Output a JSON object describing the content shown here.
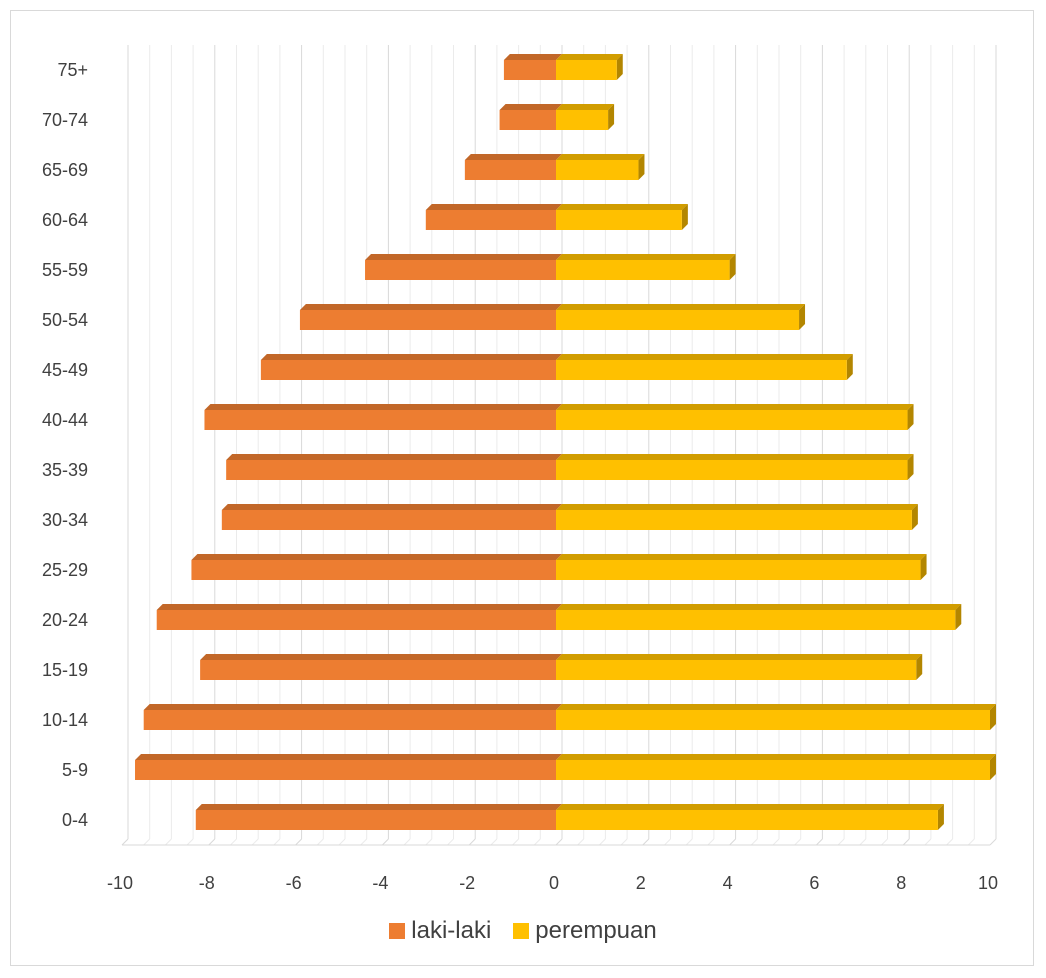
{
  "chart_data": {
    "type": "bar",
    "orientation": "horizontal",
    "title": "",
    "xlabel": "",
    "ylabel": "",
    "categories": [
      "0-4",
      "5-9",
      "10-14",
      "15-19",
      "20-24",
      "25-29",
      "30-34",
      "35-39",
      "40-44",
      "45-49",
      "50-54",
      "55-59",
      "60-64",
      "65-69",
      "70-74",
      "75+"
    ],
    "series": [
      {
        "name": "laki-laki",
        "color": "#ED7D31",
        "values": [
          -8.3,
          -9.7,
          -9.5,
          -8.2,
          -9.2,
          -8.4,
          -7.7,
          -7.6,
          -8.1,
          -6.8,
          -5.9,
          -4.4,
          -3.0,
          -2.1,
          -1.3,
          -1.2
        ]
      },
      {
        "name": "perempuan",
        "color": "#FFC000",
        "values": [
          8.8,
          10.0,
          10.0,
          8.3,
          9.2,
          8.4,
          8.2,
          8.1,
          8.1,
          6.7,
          5.6,
          4.0,
          2.9,
          1.9,
          1.2,
          1.4
        ]
      }
    ],
    "xlim": [
      -10,
      10
    ],
    "xticks": [
      "-10",
      "-8",
      "-6",
      "-4",
      "-2",
      "0",
      "2",
      "4",
      "6",
      "8",
      "10"
    ],
    "grid": true,
    "legend_position": "bottom"
  }
}
